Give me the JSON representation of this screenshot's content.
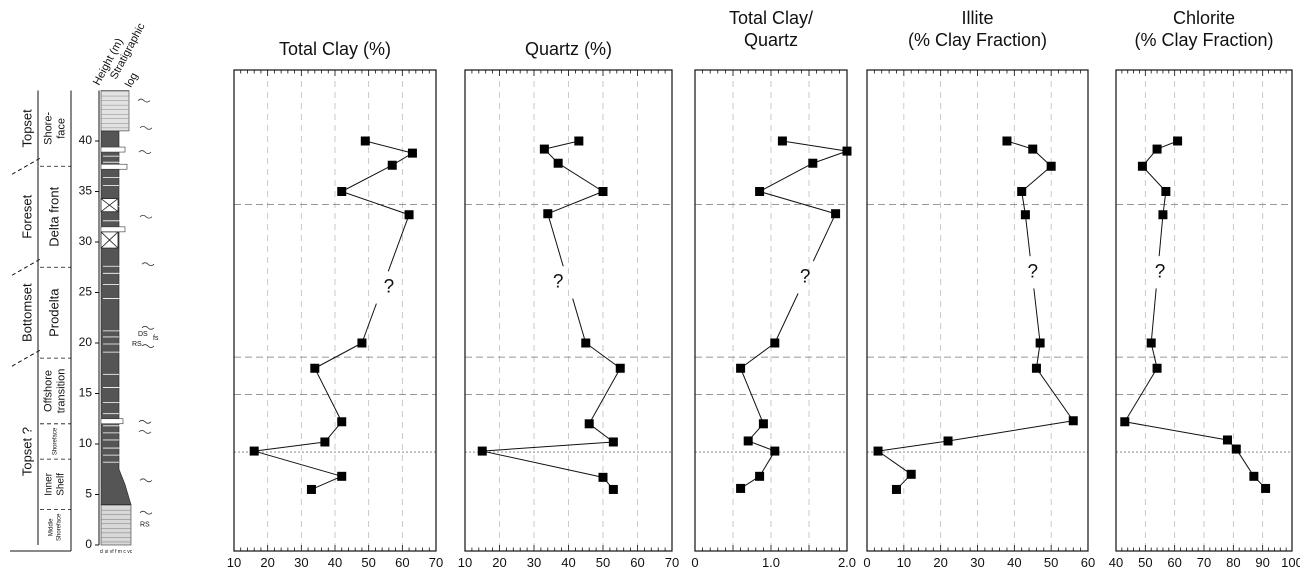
{
  "strat_log": {
    "height_label": "Height (m)",
    "log_label": [
      "Stratigraphic",
      "log"
    ],
    "height_ticks": [
      0,
      5,
      10,
      15,
      20,
      25,
      30,
      35,
      40
    ],
    "systems": [
      {
        "label": "Topset",
        "from": 37.5,
        "to": 45
      },
      {
        "label": "Foreset",
        "from": 27.5,
        "to": 37.5
      },
      {
        "label": "Bottomset",
        "from": 18.5,
        "to": 27.5
      },
      {
        "label": "Topset ?",
        "from": 0,
        "to": 18.5
      }
    ],
    "environments": [
      {
        "label": [
          "Shore-",
          "face"
        ],
        "from": 37.5,
        "to": 45,
        "size": 11
      },
      {
        "label": [
          "Delta front"
        ],
        "from": 27.5,
        "to": 37.5,
        "size": 13
      },
      {
        "label": [
          "Prodelta"
        ],
        "from": 18.5,
        "to": 27.5,
        "size": 13
      },
      {
        "label": [
          "Offshore",
          "transition"
        ],
        "from": 12,
        "to": 18.5,
        "size": 11
      },
      {
        "label": [
          "Shoreface"
        ],
        "from": 8.5,
        "to": 12,
        "size": 6
      },
      {
        "label": [
          "Inner",
          "Shelf"
        ],
        "from": 3.5,
        "to": 8.5,
        "size": 10
      },
      {
        "label": [
          "Middle",
          "Shoreface"
        ],
        "from": 0,
        "to": 3.5,
        "size": 6
      }
    ],
    "annotations": [
      "DS",
      "fs",
      "RS",
      "RS"
    ],
    "grain_scale": "cl si vf f m c vc"
  },
  "boundaries": [
    33.7,
    18.6,
    14.9,
    9.2
  ],
  "query_mark": "?",
  "chart_data": [
    {
      "type": "line",
      "title": [
        "Total Clay (%)"
      ],
      "xlim": [
        10,
        70
      ],
      "xticks": [
        "10",
        "20",
        "30",
        "40",
        "50",
        "60",
        "70"
      ],
      "ylim": [
        0,
        45
      ],
      "points": [
        {
          "x": 49,
          "y": 40
        },
        {
          "x": 63,
          "y": 38.8
        },
        {
          "x": 57,
          "y": 37.6
        },
        {
          "x": 42,
          "y": 35
        },
        {
          "x": 62,
          "y": 32.7
        },
        {
          "x": 48,
          "y": 20
        },
        {
          "x": 34,
          "y": 17.5
        },
        {
          "x": 42,
          "y": 12.2
        },
        {
          "x": 37,
          "y": 10.2
        },
        {
          "x": 16,
          "y": 9.3
        },
        {
          "x": 42,
          "y": 6.8
        },
        {
          "x": 33,
          "y": 5.5
        }
      ],
      "query": {
        "x": 56,
        "y": 25.5
      }
    },
    {
      "type": "line",
      "title": [
        "Quartz (%)"
      ],
      "xlim": [
        10,
        70
      ],
      "xticks": [
        "10",
        "20",
        "30",
        "40",
        "50",
        "60",
        "70"
      ],
      "ylim": [
        0,
        45
      ],
      "points": [
        {
          "x": 43,
          "y": 40
        },
        {
          "x": 33,
          "y": 39.2
        },
        {
          "x": 37,
          "y": 37.8
        },
        {
          "x": 50,
          "y": 35
        },
        {
          "x": 34,
          "y": 32.8
        },
        {
          "x": 45,
          "y": 20
        },
        {
          "x": 55,
          "y": 17.5
        },
        {
          "x": 46,
          "y": 12
        },
        {
          "x": 53,
          "y": 10.2
        },
        {
          "x": 15,
          "y": 9.3
        },
        {
          "x": 50,
          "y": 6.7
        },
        {
          "x": 53,
          "y": 5.5
        }
      ],
      "query": {
        "x": 37,
        "y": 26
      }
    },
    {
      "type": "line",
      "title": [
        "Total Clay/",
        "Quartz"
      ],
      "xlim": [
        0,
        2
      ],
      "xticks": [
        "0",
        "",
        "1.0",
        "",
        "2.0"
      ],
      "ylim": [
        0,
        45
      ],
      "points": [
        {
          "x": 1.15,
          "y": 40
        },
        {
          "x": 2.0,
          "y": 39
        },
        {
          "x": 1.55,
          "y": 37.8
        },
        {
          "x": 0.85,
          "y": 35
        },
        {
          "x": 1.85,
          "y": 32.8
        },
        {
          "x": 1.05,
          "y": 20
        },
        {
          "x": 0.6,
          "y": 17.5
        },
        {
          "x": 0.9,
          "y": 12
        },
        {
          "x": 0.7,
          "y": 10.3
        },
        {
          "x": 1.05,
          "y": 9.3
        },
        {
          "x": 0.85,
          "y": 6.8
        },
        {
          "x": 0.6,
          "y": 5.6
        }
      ],
      "query": {
        "x": 1.45,
        "y": 26.5
      }
    },
    {
      "type": "line",
      "title": [
        "Illite",
        "(% Clay Fraction)"
      ],
      "xlim": [
        0,
        60
      ],
      "xticks": [
        "0",
        "10",
        "20",
        "30",
        "40",
        "50",
        "60"
      ],
      "ylim": [
        0,
        45
      ],
      "points": [
        {
          "x": 38,
          "y": 40
        },
        {
          "x": 45,
          "y": 39.2
        },
        {
          "x": 50,
          "y": 37.5
        },
        {
          "x": 42,
          "y": 35
        },
        {
          "x": 43,
          "y": 32.7
        },
        {
          "x": 47,
          "y": 20
        },
        {
          "x": 46,
          "y": 17.5
        },
        {
          "x": 56,
          "y": 12.3
        },
        {
          "x": 22,
          "y": 10.3
        },
        {
          "x": 3,
          "y": 9.3
        },
        {
          "x": 12,
          "y": 7
        },
        {
          "x": 8,
          "y": 5.5
        }
      ],
      "query": {
        "x": 45,
        "y": 27
      }
    },
    {
      "type": "line",
      "title": [
        "Chlorite",
        "(% Clay Fraction)"
      ],
      "xlim": [
        40,
        100
      ],
      "xticks": [
        "40",
        "50",
        "60",
        "70",
        "80",
        "90",
        "100"
      ],
      "ylim": [
        0,
        45
      ],
      "points": [
        {
          "x": 61,
          "y": 40
        },
        {
          "x": 54,
          "y": 39.2
        },
        {
          "x": 49,
          "y": 37.5
        },
        {
          "x": 57,
          "y": 35
        },
        {
          "x": 56,
          "y": 32.7
        },
        {
          "x": 52,
          "y": 20
        },
        {
          "x": 54,
          "y": 17.5
        },
        {
          "x": 43,
          "y": 12.2
        },
        {
          "x": 78,
          "y": 10.4
        },
        {
          "x": 81,
          "y": 9.5
        },
        {
          "x": 87,
          "y": 6.8
        },
        {
          "x": 91,
          "y": 5.6
        }
      ],
      "query": {
        "x": 55,
        "y": 27
      }
    }
  ]
}
